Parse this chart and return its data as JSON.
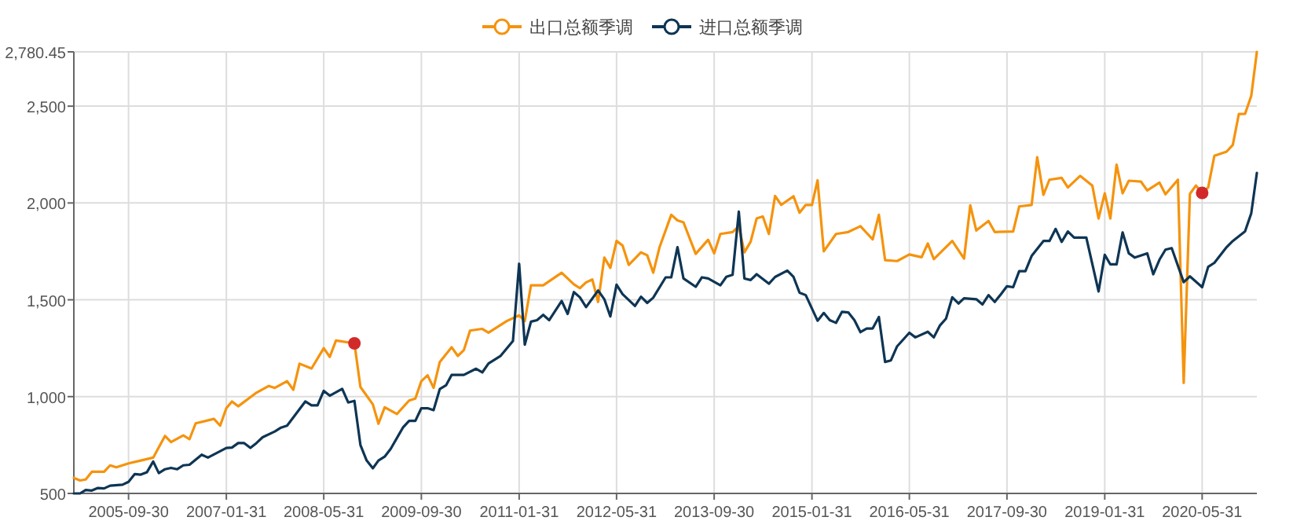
{
  "chart_data": {
    "type": "line",
    "xlim": [
      "2004-12-31",
      "2021-02-28"
    ],
    "xticks": [
      "2005-09-30",
      "2007-01-31",
      "2008-05-31",
      "2009-09-30",
      "2011-01-31",
      "2012-05-31",
      "2013-09-30",
      "2015-01-31",
      "2016-05-31",
      "2017-09-30",
      "2019-01-31",
      "2020-05-31"
    ],
    "ylim": [
      500,
      2780.45
    ],
    "yticks": [
      {
        "value": 500,
        "label": "500"
      },
      {
        "value": 1000,
        "label": "1,000"
      },
      {
        "value": 1500,
        "label": "1,500"
      },
      {
        "value": 2000,
        "label": "2,000"
      },
      {
        "value": 2500,
        "label": "2,500"
      },
      {
        "value": 2780.45,
        "label": "2,780.45"
      }
    ],
    "grid": true,
    "legend": "top",
    "marker": "none",
    "line_style": "solid",
    "series": [
      {
        "name": "出口总额季调",
        "color": "#f5930d",
        "x": [
          "2004-12-31",
          "2005-01-31",
          "2005-02-28",
          "2005-03-31",
          "2005-05-31",
          "2005-06-30",
          "2005-07-31",
          "2005-09-30",
          "2005-11-30",
          "2006-01-31",
          "2006-03-31",
          "2006-04-30",
          "2006-06-30",
          "2006-07-31",
          "2006-08-31",
          "2006-11-30",
          "2006-12-31",
          "2007-01-31",
          "2007-02-28",
          "2007-03-31",
          "2007-06-30",
          "2007-08-31",
          "2007-09-30",
          "2007-11-30",
          "2007-12-31",
          "2008-01-31",
          "2008-03-31",
          "2008-05-31",
          "2008-06-30",
          "2008-07-31",
          "2008-10-31",
          "2008-11-30",
          "2009-01-31",
          "2009-02-28",
          "2009-03-31",
          "2009-05-31",
          "2009-07-31",
          "2009-08-31",
          "2009-09-30",
          "2009-10-31",
          "2009-11-30",
          "2009-12-31",
          "2010-02-28",
          "2010-03-31",
          "2010-04-30",
          "2010-05-31",
          "2010-07-31",
          "2010-08-31",
          "2010-11-30",
          "2011-01-31",
          "2011-02-28",
          "2011-03-31",
          "2011-05-31",
          "2011-08-31",
          "2011-10-31",
          "2011-11-30",
          "2011-12-31",
          "2012-01-31",
          "2012-02-29",
          "2012-03-31",
          "2012-04-30",
          "2012-05-31",
          "2012-06-30",
          "2012-07-31",
          "2012-09-30",
          "2012-10-31",
          "2012-11-30",
          "2012-12-31",
          "2013-02-28",
          "2013-03-31",
          "2013-04-30",
          "2013-06-30",
          "2013-08-31",
          "2013-09-30",
          "2013-10-31",
          "2013-12-31",
          "2014-01-31",
          "2014-02-28",
          "2014-03-31",
          "2014-04-30",
          "2014-05-31",
          "2014-06-30",
          "2014-07-31",
          "2014-08-31",
          "2014-10-31",
          "2014-11-30",
          "2014-12-31",
          "2015-01-31",
          "2015-02-28",
          "2015-03-31",
          "2015-05-31",
          "2015-07-31",
          "2015-09-30",
          "2015-10-31",
          "2015-11-30",
          "2015-12-31",
          "2016-01-31",
          "2016-03-31",
          "2016-05-31",
          "2016-07-31",
          "2016-08-31",
          "2016-09-30",
          "2016-12-31",
          "2017-02-28",
          "2017-03-31",
          "2017-04-30",
          "2017-06-30",
          "2017-07-31",
          "2017-10-31",
          "2017-11-30",
          "2018-01-31",
          "2018-02-28",
          "2018-03-31",
          "2018-04-30",
          "2018-06-30",
          "2018-07-31",
          "2018-09-30",
          "2018-11-30",
          "2018-12-31",
          "2019-01-31",
          "2019-02-28",
          "2019-03-31",
          "2019-04-30",
          "2019-05-31",
          "2019-07-31",
          "2019-08-31",
          "2019-10-31",
          "2019-11-30",
          "2020-01-31",
          "2020-02-29",
          "2020-03-31",
          "2020-04-30",
          "2020-05-31",
          "2020-06-30",
          "2020-07-31",
          "2020-09-30",
          "2020-10-31",
          "2020-11-30",
          "2020-12-31",
          "2021-01-31",
          "2021-02-28"
        ],
        "values": [
          580,
          567,
          572,
          612,
          612,
          645,
          635,
          655,
          670,
          685,
          797,
          765,
          800,
          780,
          862,
          885,
          850,
          940,
          975,
          950,
          1020,
          1055,
          1045,
          1080,
          1035,
          1170,
          1145,
          1250,
          1205,
          1290,
          1275,
          1050,
          960,
          860,
          945,
          910,
          980,
          990,
          1080,
          1110,
          1045,
          1179,
          1255,
          1210,
          1240,
          1341,
          1350,
          1330,
          1390,
          1420,
          1390,
          1575,
          1575,
          1640,
          1580,
          1560,
          1590,
          1605,
          1489,
          1718,
          1665,
          1804,
          1780,
          1680,
          1745,
          1730,
          1640,
          1770,
          1939,
          1910,
          1900,
          1737,
          1810,
          1740,
          1840,
          1850,
          1880,
          1745,
          1800,
          1920,
          1930,
          1840,
          2036,
          1990,
          2035,
          1950,
          1990,
          1990,
          2117,
          1750,
          1840,
          1850,
          1880,
          1845,
          1812,
          1939,
          1705,
          1700,
          1734,
          1720,
          1791,
          1710,
          1804,
          1713,
          1988,
          1858,
          1907,
          1850,
          1853,
          1982,
          1990,
          2236,
          2042,
          2120,
          2130,
          2080,
          2140,
          2090,
          1920,
          2050,
          1920,
          2198,
          2050,
          2115,
          2110,
          2065,
          2105,
          2045,
          2120,
          1071,
          2047,
          2090,
          2052,
          2080,
          2244,
          2265,
          2300,
          2459,
          2460,
          2553,
          2780.45
        ]
      },
      {
        "name": "进口总额季调",
        "color": "#0e3554",
        "x": [
          "2004-12-31",
          "2005-01-31",
          "2005-02-28",
          "2005-03-31",
          "2005-04-30",
          "2005-05-31",
          "2005-06-30",
          "2005-08-31",
          "2005-09-30",
          "2005-10-31",
          "2005-11-30",
          "2005-12-31",
          "2006-01-31",
          "2006-02-28",
          "2006-03-31",
          "2006-04-30",
          "2006-05-31",
          "2006-06-30",
          "2006-07-31",
          "2006-09-30",
          "2006-10-31",
          "2007-01-31",
          "2007-02-28",
          "2007-03-31",
          "2007-04-30",
          "2007-05-31",
          "2007-06-30",
          "2007-07-31",
          "2007-09-30",
          "2007-10-31",
          "2007-11-30",
          "2008-02-29",
          "2008-03-31",
          "2008-04-30",
          "2008-05-31",
          "2008-06-30",
          "2008-08-31",
          "2008-09-30",
          "2008-10-31",
          "2008-11-30",
          "2008-12-31",
          "2009-01-31",
          "2009-02-28",
          "2009-03-31",
          "2009-04-30",
          "2009-06-30",
          "2009-07-31",
          "2009-08-31",
          "2009-09-30",
          "2009-10-31",
          "2009-11-30",
          "2009-12-31",
          "2010-01-31",
          "2010-02-28",
          "2010-04-30",
          "2010-06-30",
          "2010-07-31",
          "2010-08-31",
          "2010-10-31",
          "2010-12-31",
          "2011-01-31",
          "2011-02-28",
          "2011-03-31",
          "2011-04-30",
          "2011-05-31",
          "2011-06-30",
          "2011-08-31",
          "2011-09-30",
          "2011-10-31",
          "2011-11-30",
          "2011-12-31",
          "2012-02-29",
          "2012-03-31",
          "2012-04-30",
          "2012-05-31",
          "2012-06-30",
          "2012-08-31",
          "2012-09-30",
          "2012-10-31",
          "2012-11-30",
          "2013-01-31",
          "2013-02-28",
          "2013-03-31",
          "2013-04-30",
          "2013-06-30",
          "2013-07-31",
          "2013-08-31",
          "2013-10-31",
          "2013-11-30",
          "2013-12-31",
          "2014-01-31",
          "2014-02-28",
          "2014-03-31",
          "2014-04-30",
          "2014-06-30",
          "2014-07-31",
          "2014-09-30",
          "2014-10-31",
          "2014-11-30",
          "2014-12-31",
          "2015-02-28",
          "2015-03-31",
          "2015-04-30",
          "2015-05-31",
          "2015-06-30",
          "2015-07-31",
          "2015-08-31",
          "2015-09-30",
          "2015-10-31",
          "2015-11-30",
          "2015-12-31",
          "2016-01-31",
          "2016-02-29",
          "2016-03-31",
          "2016-05-31",
          "2016-06-30",
          "2016-08-31",
          "2016-09-30",
          "2016-10-31",
          "2016-11-30",
          "2016-12-31",
          "2017-01-31",
          "2017-02-28",
          "2017-04-30",
          "2017-05-31",
          "2017-06-30",
          "2017-07-31",
          "2017-08-31",
          "2017-09-30",
          "2017-10-31",
          "2017-11-30",
          "2017-12-31",
          "2018-01-31",
          "2018-03-31",
          "2018-04-30",
          "2018-05-31",
          "2018-06-30",
          "2018-07-31",
          "2018-08-31",
          "2018-10-31",
          "2018-12-31",
          "2019-01-31",
          "2019-02-28",
          "2019-03-31",
          "2019-04-30",
          "2019-05-31",
          "2019-06-30",
          "2019-08-31",
          "2019-09-30",
          "2019-10-31",
          "2019-11-30",
          "2019-12-31",
          "2020-02-29",
          "2020-03-31",
          "2020-05-31",
          "2020-06-30",
          "2020-07-31",
          "2020-09-30",
          "2020-10-31",
          "2020-12-31",
          "2021-01-31",
          "2021-02-28"
        ],
        "values": [
          500,
          500,
          518,
          515,
          528,
          526,
          540,
          545,
          560,
          600,
          597,
          610,
          665,
          605,
          625,
          632,
          625,
          645,
          648,
          700,
          685,
          735,
          737,
          760,
          760,
          735,
          760,
          790,
          820,
          840,
          850,
          975,
          955,
          955,
          1030,
          1005,
          1040,
          970,
          978,
          750,
          670,
          630,
          670,
          690,
          730,
          840,
          875,
          875,
          940,
          940,
          930,
          1039,
          1058,
          1112,
          1112,
          1144,
          1125,
          1171,
          1211,
          1287,
          1686,
          1268,
          1387,
          1395,
          1422,
          1395,
          1494,
          1427,
          1540,
          1513,
          1462,
          1548,
          1503,
          1414,
          1578,
          1529,
          1468,
          1516,
          1484,
          1511,
          1616,
          1616,
          1772,
          1610,
          1567,
          1616,
          1610,
          1575,
          1619,
          1629,
          1955,
          1610,
          1602,
          1632,
          1583,
          1618,
          1651,
          1618,
          1537,
          1524,
          1392,
          1432,
          1395,
          1381,
          1438,
          1435,
          1395,
          1333,
          1352,
          1352,
          1411,
          1179,
          1187,
          1260,
          1330,
          1306,
          1335,
          1306,
          1368,
          1403,
          1513,
          1481,
          1508,
          1503,
          1476,
          1524,
          1489,
          1529,
          1570,
          1565,
          1648,
          1648,
          1726,
          1804,
          1804,
          1866,
          1799,
          1853,
          1821,
          1821,
          1543,
          1732,
          1683,
          1683,
          1848,
          1740,
          1718,
          1740,
          1632,
          1707,
          1759,
          1767,
          1591,
          1621,
          1565,
          1670,
          1691,
          1772,
          1804,
          1853,
          1947,
          2155
        ]
      },
      {
        "type": "scatter",
        "marker": "circle",
        "color": "#d22a2a",
        "x": [
          "2008-10-31",
          "2020-05-31"
        ],
        "values": [
          1275,
          2052
        ]
      }
    ]
  }
}
